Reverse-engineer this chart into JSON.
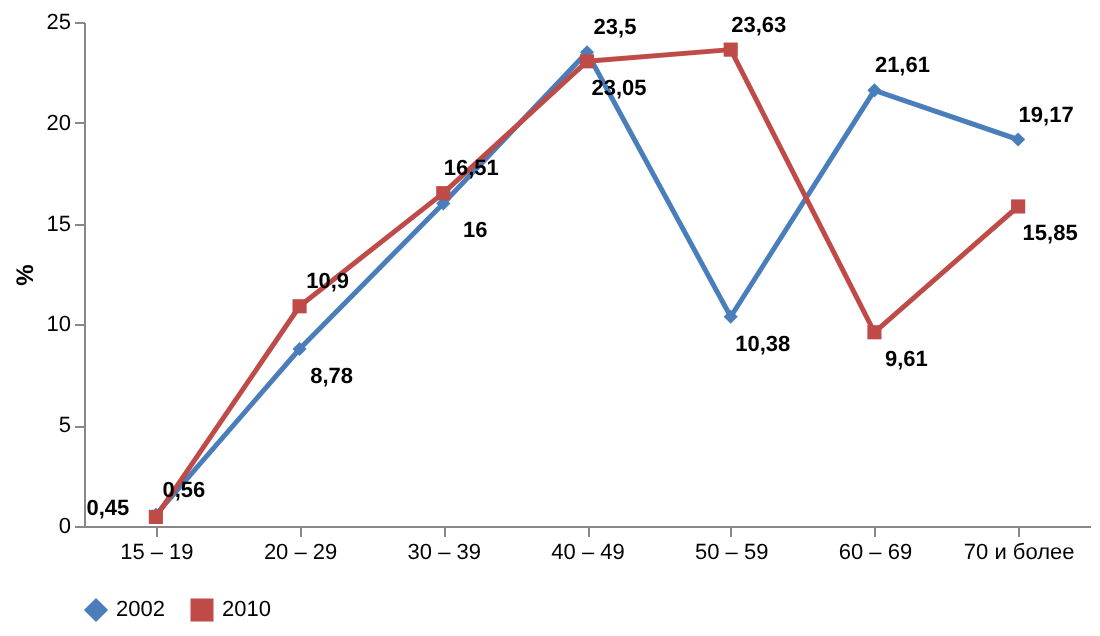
{
  "chart_data": {
    "type": "line",
    "ylabel": "%",
    "categories": [
      "15 – 19",
      "20 – 29",
      "30 – 39",
      "40 – 49",
      "50 – 59",
      "60 – 69",
      "70 и более"
    ],
    "series": [
      {
        "name": "2002",
        "color": "#4a7ebb",
        "marker": "diamond",
        "values": [
          0.56,
          8.78,
          16,
          23.5,
          10.38,
          21.61,
          19.17
        ],
        "value_labels": [
          "0,56",
          "8,78",
          "16",
          "23,5",
          "10,38",
          "21,61",
          "19,17"
        ]
      },
      {
        "name": "2010",
        "color": "#be4b48",
        "marker": "square",
        "values": [
          0.45,
          10.9,
          16.51,
          23.05,
          23.63,
          9.61,
          15.85
        ],
        "value_labels": [
          "0,45",
          "10,9",
          "16,51",
          "23,05",
          "23,63",
          "9,61",
          "15,85"
        ]
      }
    ],
    "ylim": [
      0,
      25
    ],
    "yticks": [
      0,
      5,
      10,
      15,
      20,
      25
    ],
    "grid": false,
    "legend": "bottom",
    "line_style": "solid"
  }
}
